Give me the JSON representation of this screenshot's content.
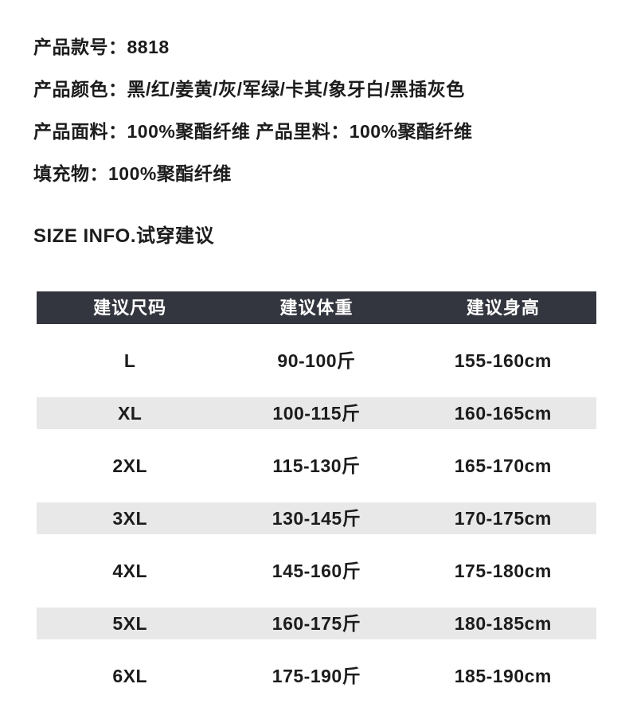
{
  "colors": {
    "header_bg": "#34363f",
    "header_text": "#ffffff",
    "row_alt_bg": "#e8e8e8",
    "text": "#1c1c1c",
    "page_bg": "#ffffff"
  },
  "product_info": {
    "model_line": "产品款号：8818",
    "color_line": "产品颜色：黑/红/姜黄/灰/军绿/卡其/象牙白/黑插灰色",
    "fabric_line": "产品面料：100%聚酯纤维 产品里料：100%聚酯纤维",
    "filling_line": "填充物：100%聚酯纤维"
  },
  "section_title": "SIZE INFO.试穿建议",
  "size_table": {
    "headers": [
      "建议尺码",
      "建议体重",
      "建议身高"
    ],
    "rows": [
      [
        "L",
        "90-100斤",
        "155-160cm"
      ],
      [
        "XL",
        "100-115斤",
        "160-165cm"
      ],
      [
        "2XL",
        "115-130斤",
        "165-170cm"
      ],
      [
        "3XL",
        "130-145斤",
        "170-175cm"
      ],
      [
        "4XL",
        "145-160斤",
        "175-180cm"
      ],
      [
        "5XL",
        "160-175斤",
        "180-185cm"
      ],
      [
        "6XL",
        "175-190斤",
        "185-190cm"
      ]
    ]
  }
}
